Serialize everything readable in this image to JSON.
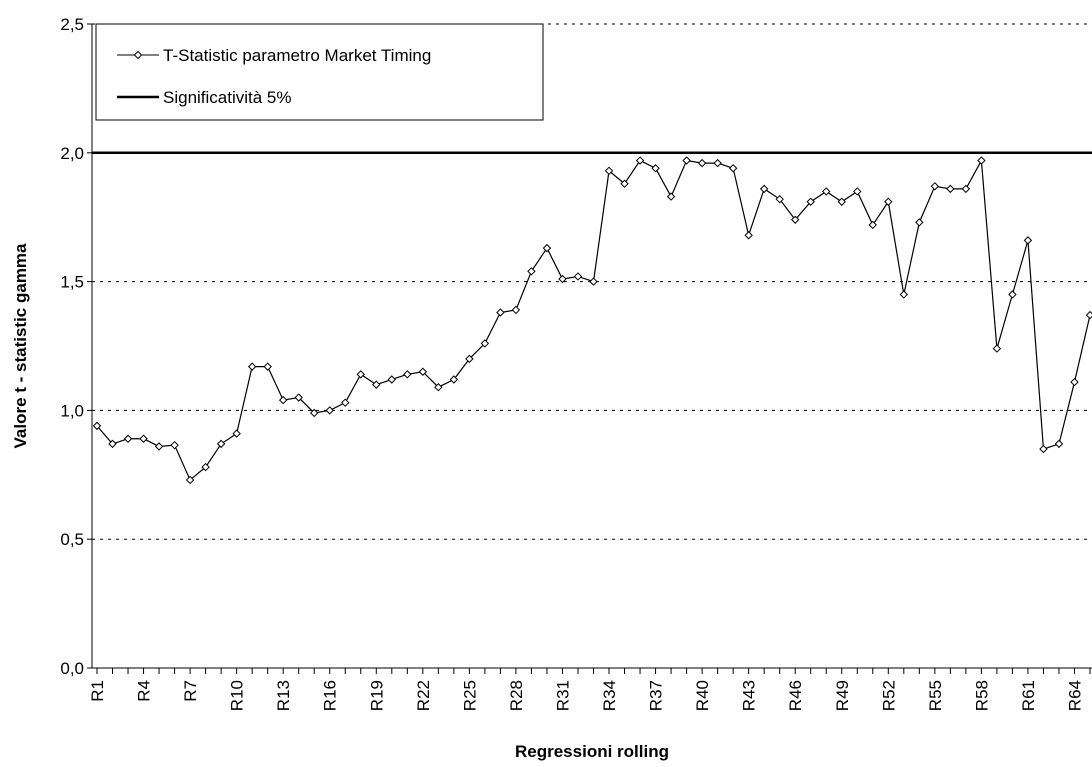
{
  "chart_data": {
    "type": "line",
    "x_label": "Regressioni rolling",
    "y_label": "Valore t - statistic gamma",
    "categories": [
      "R1",
      null,
      null,
      "R4",
      null,
      null,
      "R7",
      null,
      null,
      "R10",
      null,
      null,
      "R13",
      null,
      null,
      "R16",
      null,
      null,
      "R19",
      null,
      null,
      "R22",
      null,
      null,
      "R25",
      null,
      null,
      "R28",
      null,
      null,
      "R31",
      null,
      null,
      "R34",
      null,
      null,
      "R37",
      null,
      null,
      "R40",
      null,
      null,
      "R43",
      null,
      null,
      "R46",
      null,
      null,
      "R49",
      null,
      null,
      "R52",
      null,
      null,
      "R55",
      null,
      null,
      "R58",
      null,
      null,
      "R61",
      null,
      null,
      "R64",
      null
    ],
    "series": [
      {
        "name": "T-Statistic parametro Market Timing",
        "color": "#000000",
        "values": [
          0.94,
          0.87,
          0.89,
          0.89,
          0.86,
          0.865,
          0.73,
          0.78,
          0.87,
          0.91,
          1.17,
          1.17,
          1.04,
          1.05,
          0.99,
          1.0,
          1.03,
          1.14,
          1.1,
          1.12,
          1.14,
          1.15,
          1.09,
          1.12,
          1.2,
          1.26,
          1.38,
          1.39,
          1.54,
          1.63,
          1.51,
          1.52,
          1.5,
          1.93,
          1.88,
          1.97,
          1.94,
          1.83,
          1.97,
          1.96,
          1.96,
          1.94,
          1.68,
          1.86,
          1.82,
          1.74,
          1.81,
          1.85,
          1.81,
          1.85,
          1.72,
          1.81,
          1.45,
          1.73,
          1.87,
          1.86,
          1.86,
          1.97,
          1.24,
          1.45,
          1.66,
          0.85,
          0.87,
          1.11,
          1.37
        ]
      }
    ],
    "reference_line": {
      "name": "Significatività 5%",
      "value": 2.0,
      "color": "#000000"
    },
    "ylim": [
      0,
      2.5
    ],
    "yticks": [
      {
        "value": 0,
        "label": "0,0"
      },
      {
        "value": 0.5,
        "label": "0,5"
      },
      {
        "value": 1.0,
        "label": "1,0"
      },
      {
        "value": 1.5,
        "label": "1,5"
      },
      {
        "value": 2.0,
        "label": "2,0"
      },
      {
        "value": 2.5,
        "label": "2,5"
      }
    ],
    "grid": true
  }
}
